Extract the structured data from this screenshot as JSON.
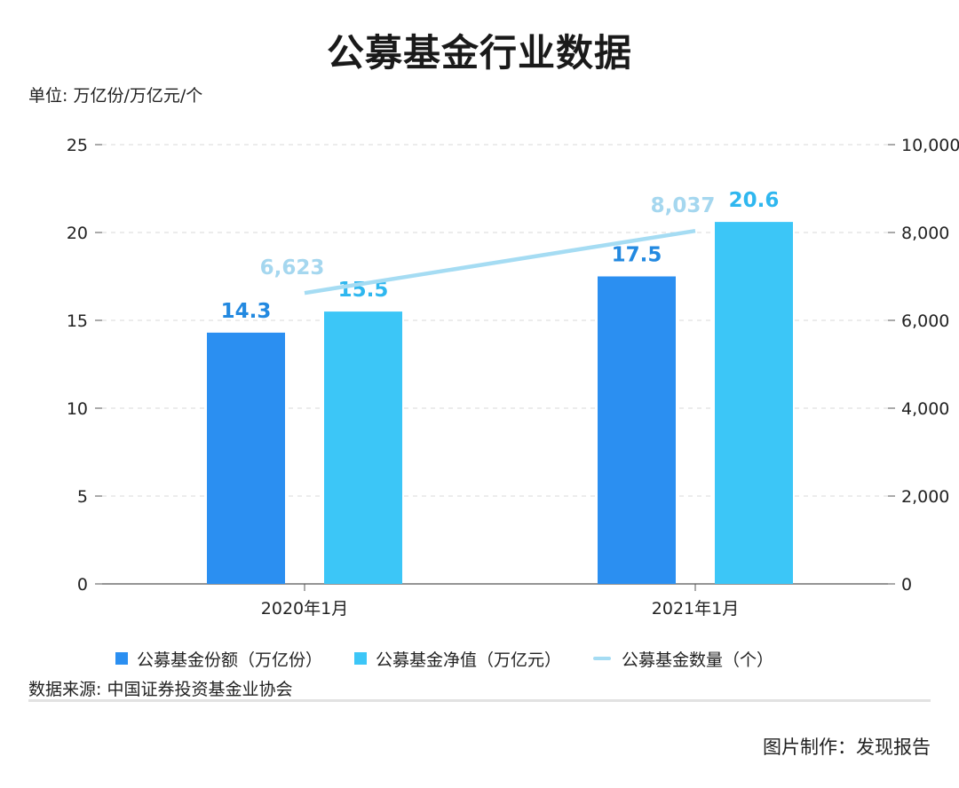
{
  "title": "公募基金行业数据",
  "unit_label": "单位: 万亿份/万亿元/个",
  "source": "数据来源: 中国证券投资基金业协会",
  "credit": "图片制作：发现报告",
  "colors": {
    "series1": "#2b8ff1",
    "series2": "#3cc6f7",
    "line": "#a5dcf3",
    "label1": "#2389e0",
    "label2": "#2fb7ef",
    "label_line": "#a5d7ef",
    "axis": "#222222",
    "grid": "#d9d9d9"
  },
  "chart_data": {
    "type": "bar",
    "categories": [
      "2020年1月",
      "2021年1月"
    ],
    "series": [
      {
        "name": "公募基金份额（万亿份）",
        "values": [
          14.3,
          17.5
        ],
        "axis": "left",
        "kind": "bar",
        "labels": [
          "14.3",
          "17.5"
        ]
      },
      {
        "name": "公募基金净值（万亿元）",
        "values": [
          15.5,
          20.6
        ],
        "axis": "left",
        "kind": "bar",
        "labels": [
          "15.5",
          "20.6"
        ]
      },
      {
        "name": "公募基金数量（个）",
        "values": [
          6623,
          8037
        ],
        "axis": "right",
        "kind": "line",
        "labels": [
          "6,623",
          "8,037"
        ]
      }
    ],
    "y_left": {
      "min": 0,
      "max": 25,
      "ticks": [
        "0",
        "5",
        "10",
        "15",
        "20",
        "25"
      ]
    },
    "y_right": {
      "min": 0,
      "max": 10000,
      "ticks": [
        "0",
        "2,000",
        "4,000",
        "6,000",
        "8,000",
        "10,000"
      ]
    },
    "grid": true,
    "legend_position": "bottom"
  }
}
